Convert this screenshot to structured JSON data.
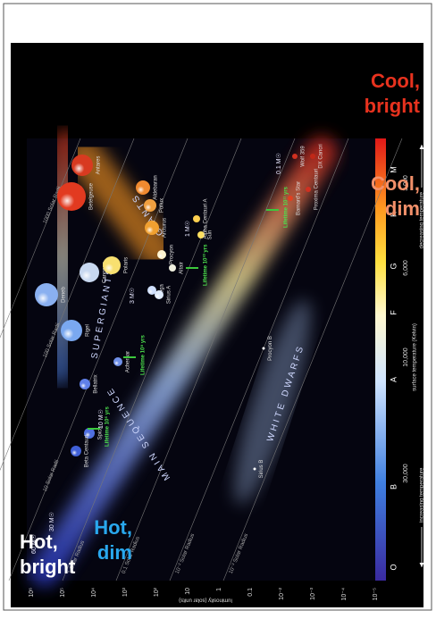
{
  "corner_labels": {
    "hot_bright": [
      "Hot,",
      "bright"
    ],
    "hot_dim": [
      "Hot,",
      "dim"
    ],
    "cool_bright": [
      "Cool,",
      "bright"
    ],
    "cool_dim": [
      "Cool,",
      "dim"
    ]
  },
  "diagram": {
    "y_axis_label": "luminosity (solar units)",
    "y_ticks": [
      "10⁶",
      "10⁵",
      "10⁴",
      "10³",
      "10²",
      "10",
      "1",
      "0.1",
      "10⁻²",
      "10⁻³",
      "10⁻⁴",
      "10⁻⁵"
    ],
    "spectral_classes": [
      "O",
      "B",
      "A",
      "F",
      "G",
      "K",
      "M"
    ],
    "temperatures": [
      "30,000",
      "10,000",
      "6,000",
      "3,000"
    ],
    "x_axis_label": "surface temperature (Kelvin)",
    "x_axis_left": "increasing temperature",
    "x_axis_right": "decreasing temperature",
    "regions": [
      "SUPERGIANTS",
      "GIANTS",
      "MAIN SEQUENCE",
      "WHITE DWARFS"
    ],
    "radius_lines": [
      "1000 Solar Radii",
      "100 Solar Radii",
      "10 Solar Radii",
      "1 Solar Radius",
      "0.1 Solar Radius",
      "10⁻² Solar Radius",
      "10⁻³ Solar Radius"
    ],
    "masses": [
      "60 M☉",
      "30 M☉",
      "10 M☉",
      "3 M☉",
      "1 M☉",
      "0.1 M☉"
    ],
    "lifetimes": [
      "Lifetime 10⁶ yrs",
      "Lifetime 10⁸ yrs",
      "Lifetime 10¹⁰ yrs",
      "Lifetime 10¹¹ yrs"
    ],
    "stars": [
      "Betelgeuse",
      "Antares",
      "Rigel",
      "Deneb",
      "Canopus",
      "Polaris",
      "Aldebaran",
      "Pollux",
      "Arcturus",
      "Spica",
      "Beta Centauri",
      "Bellatrix",
      "Achernar",
      "Vega",
      "Sirius A",
      "Altair",
      "Procyon",
      "Sun",
      "Alpha Centauri A",
      "Sirius B",
      "Procyon B",
      "Barnard's Star",
      "Proxima Centauri",
      "Wolf 359",
      "DX Cancri"
    ]
  }
}
